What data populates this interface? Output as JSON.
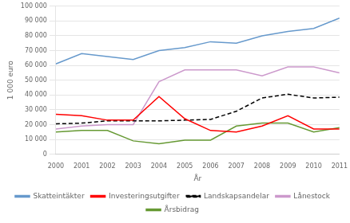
{
  "chart_data": {
    "type": "line",
    "x_label": "År",
    "y_label": "1 000 euro",
    "x": [
      2000,
      2001,
      2002,
      2003,
      2004,
      2005,
      2006,
      2007,
      2008,
      2009,
      2010,
      2011
    ],
    "series": [
      {
        "name": "Skatteintäkter",
        "color": "#6699CC",
        "line_style": "solid",
        "values": [
          61000,
          68000,
          66000,
          64000,
          70000,
          72000,
          76000,
          75000,
          80000,
          83000,
          85000,
          92000
        ]
      },
      {
        "name": "Investeringsutgifter",
        "color": "#FF0000",
        "line_style": "solid",
        "values": [
          27000,
          26000,
          23000,
          23000,
          39000,
          24000,
          16000,
          15000,
          19000,
          26000,
          17000,
          17000
        ]
      },
      {
        "name": "Landskapsandelar",
        "color": "#000000",
        "line_style": "dashed",
        "values": [
          20500,
          21000,
          22500,
          22500,
          22500,
          23000,
          23500,
          29000,
          38000,
          40500,
          38000,
          38500
        ]
      },
      {
        "name": "Lånestock",
        "color": "#CC99CC",
        "line_style": "solid",
        "values": [
          17000,
          19000,
          20000,
          20000,
          49000,
          57000,
          57000,
          57000,
          53000,
          59000,
          59000,
          55000
        ]
      },
      {
        "name": "Årsbidrag",
        "color": "#669933",
        "line_style": "solid",
        "values": [
          15000,
          16000,
          16000,
          9000,
          7000,
          9500,
          9500,
          19000,
          21000,
          21000,
          15000,
          18000
        ]
      }
    ],
    "xlim": [
      2000,
      2011
    ],
    "xticks": [
      2000,
      2001,
      2002,
      2003,
      2004,
      2005,
      2006,
      2007,
      2008,
      2009,
      2010,
      2011
    ],
    "ylim": [
      0,
      100000
    ],
    "yticks": [
      0,
      {
        "value": 10000,
        "label": "10 000"
      },
      {
        "value": 20000,
        "label": "20 000"
      },
      {
        "value": 30000,
        "label": "30 000"
      },
      {
        "value": 40000,
        "label": "40 000"
      },
      {
        "value": 50000,
        "label": "50 000"
      },
      {
        "value": 60000,
        "label": "60 000"
      },
      {
        "value": 70000,
        "label": "70 000"
      },
      {
        "value": 80000,
        "label": "80 000"
      },
      {
        "value": 90000,
        "label": "90 000"
      },
      {
        "value": 100000,
        "label": "100 000"
      }
    ],
    "grid": true,
    "legend": "bottom"
  }
}
